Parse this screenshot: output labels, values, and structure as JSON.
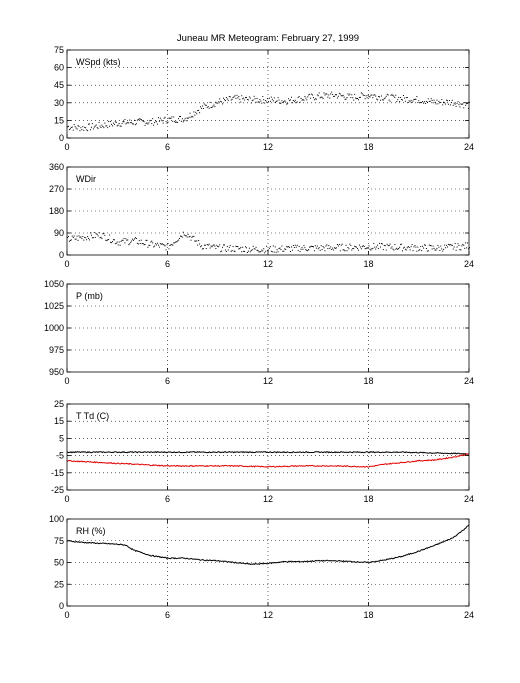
{
  "title": "Juneau MR Meteogram:  February 27, 1999",
  "colors": {
    "primary": "#000000",
    "dewpoint": "#e00000"
  },
  "chart_data": [
    {
      "type": "scatter",
      "label": "WSpd (kts)",
      "xlim": [
        0,
        24
      ],
      "ylim": [
        0,
        75
      ],
      "xticks": [
        0,
        6,
        12,
        18,
        24
      ],
      "yticks": [
        0,
        15,
        30,
        45,
        60,
        75
      ],
      "grid": true,
      "series": [
        {
          "color": "#000000",
          "x": [
            0,
            1,
            2,
            3,
            4,
            5,
            6,
            7,
            8,
            9,
            10,
            11,
            12,
            13,
            14,
            15,
            16,
            17,
            18,
            19,
            20,
            21,
            22,
            23,
            24
          ],
          "y": [
            10,
            9,
            11,
            13,
            14,
            14,
            16,
            17,
            26,
            31,
            34,
            33,
            33,
            32,
            34,
            36,
            37,
            35,
            37,
            35,
            34,
            33,
            31,
            31,
            28
          ]
        }
      ]
    },
    {
      "type": "scatter",
      "label": "WDir",
      "xlim": [
        0,
        24
      ],
      "ylim": [
        0,
        360
      ],
      "xticks": [
        0,
        6,
        12,
        18,
        24
      ],
      "yticks": [
        0,
        90,
        180,
        270,
        360
      ],
      "grid": true,
      "series": [
        {
          "color": "#000000",
          "x": [
            0,
            1,
            2,
            3,
            4,
            5,
            6,
            7,
            8,
            9,
            10,
            11,
            12,
            13,
            14,
            15,
            16,
            17,
            18,
            19,
            20,
            21,
            22,
            23,
            24
          ],
          "y": [
            65,
            75,
            85,
            55,
            60,
            45,
            35,
            95,
            40,
            30,
            28,
            26,
            25,
            27,
            30,
            30,
            32,
            34,
            36,
            35,
            33,
            31,
            30,
            34,
            40
          ]
        }
      ]
    },
    {
      "type": "line",
      "label": "P (mb)",
      "xlim": [
        0,
        24
      ],
      "ylim": [
        950,
        1050
      ],
      "xticks": [
        0,
        6,
        12,
        18,
        24
      ],
      "yticks": [
        950,
        975,
        1000,
        1025,
        1050
      ],
      "grid": true,
      "series": []
    },
    {
      "type": "line",
      "label": "T Td (C)",
      "xlim": [
        0,
        24
      ],
      "ylim": [
        -25,
        25
      ],
      "xticks": [
        0,
        6,
        12,
        18,
        24
      ],
      "yticks": [
        -25,
        -15,
        -5,
        5,
        15,
        25
      ],
      "grid": true,
      "series": [
        {
          "color": "#000000",
          "x": [
            0,
            2,
            4,
            6,
            8,
            10,
            12,
            14,
            16,
            18,
            20,
            22,
            24
          ],
          "y": [
            -3,
            -3,
            -3,
            -3,
            -3,
            -3,
            -3,
            -3,
            -3,
            -3,
            -3,
            -3.5,
            -4
          ]
        },
        {
          "color": "#e00000",
          "x": [
            0,
            1,
            2,
            4,
            6,
            8,
            10,
            12,
            14,
            16,
            18,
            19,
            20,
            21,
            22,
            23,
            24
          ],
          "y": [
            -8,
            -8.5,
            -9,
            -10,
            -11,
            -11,
            -11,
            -11.5,
            -11,
            -11,
            -11.5,
            -10,
            -9,
            -8,
            -7.5,
            -6,
            -4
          ]
        }
      ]
    },
    {
      "type": "line",
      "label": "RH (%)",
      "xlim": [
        0,
        24
      ],
      "ylim": [
        0,
        100
      ],
      "xticks": [
        0,
        6,
        12,
        18,
        24
      ],
      "yticks": [
        0,
        25,
        50,
        75,
        100
      ],
      "grid": true,
      "series": [
        {
          "color": "#000000",
          "x": [
            0,
            1,
            2,
            3,
            3.5,
            4,
            5,
            6,
            7,
            8,
            9,
            10,
            11,
            12,
            13,
            14,
            15,
            16,
            17,
            18,
            19,
            20,
            21,
            22,
            23,
            23.5,
            24
          ],
          "y": [
            75,
            73,
            72,
            71,
            70,
            64,
            58,
            55,
            55,
            53,
            52,
            50,
            48,
            49,
            51,
            51,
            52,
            52,
            51,
            50,
            53,
            57,
            63,
            70,
            78,
            85,
            93
          ]
        }
      ]
    }
  ]
}
